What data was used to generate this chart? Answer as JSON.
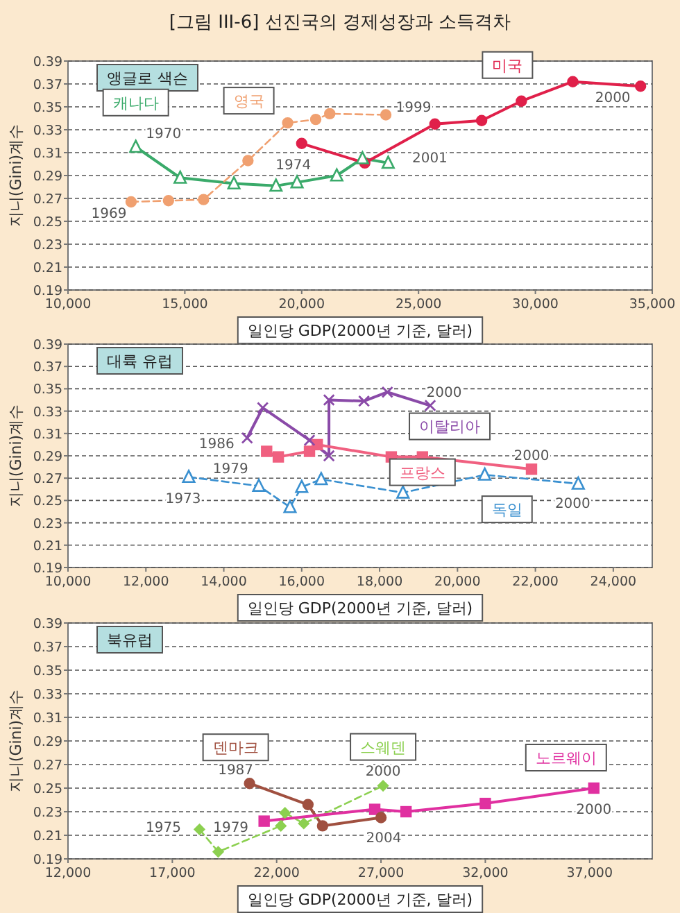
{
  "chart_data": [
    {
      "type": "line",
      "title": "[그림 III-6] 선진국의 경제성장과 소득격차",
      "subtitle": "앵글로 색슨",
      "xlabel": "일인당 GDP(2000년 기준, 달러)",
      "ylabel": "지니(Gini)계수",
      "grid": "y",
      "xlim": [
        10000,
        35000
      ],
      "xticks": [
        {
          "value": 10000,
          "label": "10,000"
        },
        {
          "value": 15000,
          "label": "15,000"
        },
        {
          "value": 20000,
          "label": "20,000"
        },
        {
          "value": 25000,
          "label": "25,000"
        },
        {
          "value": 30000,
          "label": "30,000"
        },
        {
          "value": 35000,
          "label": "35,000"
        }
      ],
      "ylim": [
        0.19,
        0.39
      ],
      "yticks": [
        0.19,
        0.21,
        0.23,
        0.25,
        0.27,
        0.29,
        0.31,
        0.33,
        0.35,
        0.37,
        0.39
      ],
      "series": [
        {
          "name": "캐나다",
          "color": "#3aaa6a",
          "marker": "triangle",
          "line_style": "solid",
          "x": [
            12900,
            14800,
            17100,
            18900,
            19800,
            21500,
            22600,
            23700
          ],
          "values": [
            0.315,
            0.288,
            0.283,
            0.281,
            0.284,
            0.29,
            0.305,
            0.301
          ]
        },
        {
          "name": "영국",
          "color": "#f0a070",
          "marker": "circle",
          "line_style": "dashed",
          "x": [
            12700,
            14300,
            15800,
            17700,
            19400,
            20600,
            21200,
            23600
          ],
          "values": [
            0.267,
            0.268,
            0.269,
            0.303,
            0.336,
            0.339,
            0.344,
            0.343
          ]
        },
        {
          "name": "미국",
          "color": "#e0204a",
          "marker": "circle",
          "line_style": "solid",
          "x": [
            20000,
            22700,
            25700,
            27700,
            29400,
            31600,
            34500
          ],
          "values": [
            0.318,
            0.301,
            0.335,
            0.338,
            0.355,
            0.372,
            0.368
          ]
        }
      ],
      "annotations": [
        {
          "text": "1970",
          "x": 12900,
          "y": 0.315
        },
        {
          "text": "1969",
          "x": 12700,
          "y": 0.267
        },
        {
          "text": "1999",
          "x": 23600,
          "y": 0.343
        },
        {
          "text": "1974",
          "x": 20000,
          "y": 0.318
        },
        {
          "text": "2001",
          "x": 23700,
          "y": 0.301
        },
        {
          "text": "2000",
          "x": 34500,
          "y": 0.368
        }
      ]
    },
    {
      "type": "line",
      "subtitle": "대륙 유럽",
      "xlabel": "일인당 GDP(2000년 기준, 달러)",
      "ylabel": "지니(Gini)계수",
      "grid": "y",
      "xlim": [
        10000,
        25000
      ],
      "xticks": [
        {
          "value": 10000,
          "label": "10,000"
        },
        {
          "value": 12000,
          "label": "12,000"
        },
        {
          "value": 14000,
          "label": "14,000"
        },
        {
          "value": 16000,
          "label": "16,000"
        },
        {
          "value": 18000,
          "label": "18,000"
        },
        {
          "value": 20000,
          "label": "20,000"
        },
        {
          "value": 22000,
          "label": "22,000"
        },
        {
          "value": 24000,
          "label": "24,000"
        }
      ],
      "ylim": [
        0.19,
        0.39
      ],
      "yticks": [
        0.19,
        0.21,
        0.23,
        0.25,
        0.27,
        0.29,
        0.31,
        0.33,
        0.35,
        0.37,
        0.39
      ],
      "series": [
        {
          "name": "이탈리아",
          "color": "#8a4aa8",
          "marker": "cross",
          "line_style": "solid",
          "x": [
            14600,
            15000,
            16200,
            16700,
            16700,
            17600,
            18200,
            19300
          ],
          "values": [
            0.306,
            0.333,
            0.304,
            0.29,
            0.34,
            0.339,
            0.347,
            0.335
          ]
        },
        {
          "name": "프랑스",
          "color": "#f06080",
          "marker": "square",
          "line_style": "solid",
          "x": [
            15100,
            15400,
            16200,
            16400,
            18300,
            19100,
            21900
          ],
          "values": [
            0.294,
            0.289,
            0.294,
            0.3,
            0.289,
            0.289,
            0.278
          ]
        },
        {
          "name": "독일",
          "color": "#3a90d0",
          "marker": "triangle",
          "line_style": "dashed",
          "x": [
            13100,
            14900,
            15700,
            16000,
            16500,
            18600,
            20700,
            23100
          ],
          "values": [
            0.271,
            0.263,
            0.244,
            0.262,
            0.269,
            0.257,
            0.273,
            0.265
          ]
        }
      ],
      "annotations": [
        {
          "text": "1986",
          "x": 14600,
          "y": 0.306
        },
        {
          "text": "1979",
          "x": 15100,
          "y": 0.294
        },
        {
          "text": "1973",
          "x": 13100,
          "y": 0.271
        },
        {
          "text": "2000",
          "x": 19300,
          "y": 0.335
        },
        {
          "text": "2000",
          "x": 21900,
          "y": 0.278
        },
        {
          "text": "2000",
          "x": 23100,
          "y": 0.265
        }
      ]
    },
    {
      "type": "line",
      "subtitle": "북유럽",
      "xlabel": "일인당 GDP(2000년 기준, 달러)",
      "ylabel": "지니(Gini)계수",
      "grid": "y",
      "xlim": [
        12000,
        40000
      ],
      "xticks": [
        {
          "value": 12000,
          "label": "12,000"
        },
        {
          "value": 17000,
          "label": "17,000"
        },
        {
          "value": 22000,
          "label": "22,000"
        },
        {
          "value": 27000,
          "label": "27,000"
        },
        {
          "value": 32000,
          "label": "32,000"
        },
        {
          "value": 37000,
          "label": "37,000"
        }
      ],
      "ylim": [
        0.19,
        0.39
      ],
      "yticks": [
        0.19,
        0.21,
        0.23,
        0.25,
        0.27,
        0.29,
        0.31,
        0.33,
        0.35,
        0.37,
        0.39
      ],
      "series": [
        {
          "name": "덴마크",
          "color": "#a05040",
          "marker": "circle",
          "line_style": "solid",
          "x": [
            20700,
            23500,
            24200,
            27000
          ],
          "values": [
            0.254,
            0.236,
            0.218,
            0.225
          ]
        },
        {
          "name": "스웨덴",
          "color": "#8cd050",
          "marker": "diamond",
          "line_style": "dashed",
          "x": [
            18300,
            19200,
            22200,
            22400,
            23300,
            27100
          ],
          "values": [
            0.215,
            0.196,
            0.218,
            0.229,
            0.22,
            0.252
          ]
        },
        {
          "name": "노르웨이",
          "color": "#e030a0",
          "marker": "square",
          "line_style": "solid",
          "x": [
            21400,
            26700,
            28200,
            32000,
            37200
          ],
          "values": [
            0.222,
            0.232,
            0.23,
            0.237,
            0.25
          ]
        }
      ],
      "annotations": [
        {
          "text": "1987",
          "x": 20700,
          "y": 0.254
        },
        {
          "text": "2004",
          "x": 27000,
          "y": 0.225
        },
        {
          "text": "1975",
          "x": 18300,
          "y": 0.215
        },
        {
          "text": "2000",
          "x": 27100,
          "y": 0.252
        },
        {
          "text": "1979",
          "x": 21400,
          "y": 0.222
        },
        {
          "text": "2000",
          "x": 37200,
          "y": 0.25
        }
      ]
    }
  ]
}
